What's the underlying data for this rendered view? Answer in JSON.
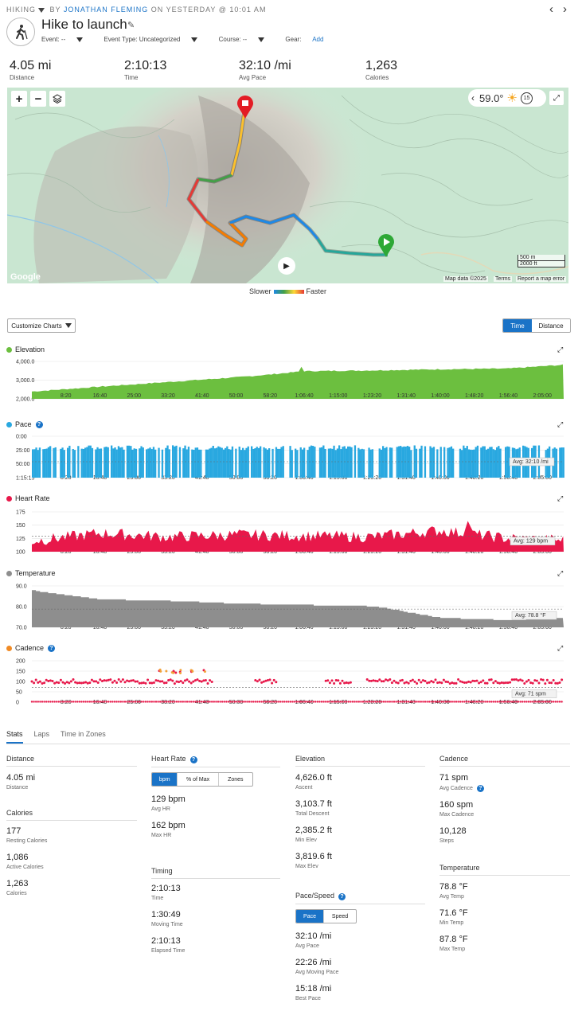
{
  "header": {
    "category": "HIKING",
    "by": "BY",
    "author": "JONATHAN FLEMING",
    "on": "ON YESTERDAY @ 10:01 AM",
    "title": "Hike to launch",
    "event_label": "Event: --",
    "event_type_label": "Event Type: Uncategorized",
    "course_label": "Course: --",
    "gear_label": "Gear:",
    "gear_add": "Add",
    "prev_icon": "chevron-left-icon",
    "next_icon": "chevron-right-icon"
  },
  "summary": [
    {
      "value": "4.05 mi",
      "label": "Distance"
    },
    {
      "value": "2:10:13",
      "label": "Time"
    },
    {
      "value": "32:10 /mi",
      "label": "Avg Pace"
    },
    {
      "value": "1,263",
      "label": "Calories"
    }
  ],
  "map": {
    "temperature": "59.0°",
    "weather_icon": "sun-icon",
    "scale_m": "500 m",
    "scale_ft": "2000 ft",
    "attribution": "Map data ©2025",
    "terms": "Terms",
    "report": "Report a map error",
    "google": "Google",
    "legend_slow": "Slower",
    "legend_fast": "Faster",
    "badge": "15"
  },
  "controls": {
    "customize": "Customize Charts",
    "time": "Time",
    "distance": "Distance"
  },
  "x_ticks": [
    "8:20",
    "16:40",
    "25:00",
    "33:20",
    "41:40",
    "50:00",
    "58:20",
    "1:06:40",
    "1:15:00",
    "1:23:20",
    "1:31:40",
    "1:40:00",
    "1:48:20",
    "1:56:40",
    "2:05:00"
  ],
  "charts": {
    "elevation": {
      "title": "Elevation",
      "color": "#6cbf3f",
      "y_ticks": [
        "4,000.0",
        "3,000.0",
        "2,000.0"
      ]
    },
    "pace": {
      "title": "Pace",
      "color": "#29a8e0",
      "y_ticks": [
        "0:00",
        "25:00",
        "50:00",
        "1:15:15"
      ],
      "avg": "Avg: 32:10 /mi"
    },
    "hr": {
      "title": "Heart Rate",
      "color": "#e8184a",
      "y_ticks": [
        "175",
        "150",
        "125",
        "100"
      ],
      "avg": "Avg: 129 bpm"
    },
    "temp": {
      "title": "Temperature",
      "color": "#8e8e8e",
      "y_ticks": [
        "90.0",
        "80.0",
        "70.0"
      ],
      "avg": "Avg: 78.8 °F"
    },
    "cadence": {
      "title": "Cadence",
      "color": "#e8184a",
      "title_dot": "#f08a24",
      "y_ticks": [
        "200",
        "150",
        "100",
        "50",
        "0"
      ],
      "avg": "Avg: 71 spm"
    }
  },
  "chart_data": [
    {
      "type": "area",
      "title": "Elevation",
      "x_unit": "elapsed time",
      "x": [
        "0:00",
        "16:40",
        "33:20",
        "50:00",
        "58:20",
        "1:06:40",
        "1:23:20",
        "1:40:00",
        "1:56:40",
        "2:10:13"
      ],
      "series": [
        {
          "name": "Elevation",
          "values": [
            2390,
            2650,
            2900,
            3150,
            3300,
            3480,
            3520,
            3580,
            3620,
            3820
          ]
        }
      ],
      "ylim": [
        2000,
        4200
      ]
    },
    {
      "type": "area",
      "title": "Pace",
      "series": [
        {
          "name": "Pace"
        }
      ],
      "avg": "32:10 /mi"
    },
    {
      "type": "area",
      "title": "Heart Rate",
      "x": [
        "0:00",
        "16:40",
        "33:20",
        "50:00",
        "1:06:40",
        "1:23:20",
        "1:40:00",
        "1:56:40",
        "2:10:13"
      ],
      "series": [
        {
          "name": "Heart Rate",
          "values": [
            120,
            135,
            128,
            132,
            130,
            128,
            140,
            125,
            122
          ]
        }
      ],
      "ylim": [
        100,
        175
      ],
      "avg": 129
    },
    {
      "type": "area",
      "title": "Temperature",
      "x": [
        "0:00",
        "8:20",
        "16:40",
        "33:20",
        "50:00",
        "1:06:40",
        "1:23:20",
        "1:40:00",
        "1:56:40",
        "2:10:13"
      ],
      "series": [
        {
          "name": "Temperature",
          "values": [
            87.8,
            85.5,
            83.5,
            82.8,
            81.5,
            80.8,
            80.2,
            74.5,
            73.5,
            74.5
          ]
        }
      ],
      "ylim": [
        70,
        90
      ],
      "avg": 78.8
    },
    {
      "type": "scatter",
      "title": "Cadence",
      "series": [
        {
          "name": "Cadence"
        }
      ],
      "ylim": [
        0,
        200
      ],
      "avg": 71
    }
  ],
  "stats_tabs": [
    "Stats",
    "Laps",
    "Time in Zones"
  ],
  "stats": {
    "distance": {
      "header": "Distance",
      "items": [
        {
          "v": "4.05 mi",
          "l": "Distance"
        }
      ]
    },
    "calories": {
      "header": "Calories",
      "items": [
        {
          "v": "177",
          "l": "Resting Calories"
        },
        {
          "v": "1,086",
          "l": "Active Calories"
        },
        {
          "v": "1,263",
          "l": "Calories"
        }
      ]
    },
    "heart_rate": {
      "header": "Heart Rate",
      "seg": [
        "bpm",
        "% of Max",
        "Zones"
      ],
      "items": [
        {
          "v": "129 bpm",
          "l": "Avg HR"
        },
        {
          "v": "162 bpm",
          "l": "Max HR"
        }
      ]
    },
    "timing": {
      "header": "Timing",
      "items": [
        {
          "v": "2:10:13",
          "l": "Time"
        },
        {
          "v": "1:30:49",
          "l": "Moving Time"
        },
        {
          "v": "2:10:13",
          "l": "Elapsed Time"
        }
      ]
    },
    "elevation": {
      "header": "Elevation",
      "items": [
        {
          "v": "4,626.0 ft",
          "l": "Ascent"
        },
        {
          "v": "3,103.7 ft",
          "l": "Total Descent"
        },
        {
          "v": "2,385.2 ft",
          "l": "Min Elev"
        },
        {
          "v": "3,819.6 ft",
          "l": "Max Elev"
        }
      ]
    },
    "pace": {
      "header": "Pace/Speed",
      "seg": [
        "Pace",
        "Speed"
      ],
      "items": [
        {
          "v": "32:10 /mi",
          "l": "Avg Pace"
        },
        {
          "v": "22:26 /mi",
          "l": "Avg Moving Pace"
        },
        {
          "v": "15:18 /mi",
          "l": "Best Pace"
        }
      ]
    },
    "cadence": {
      "header": "Cadence",
      "items": [
        {
          "v": "71 spm",
          "l": "Avg Cadence"
        },
        {
          "v": "160 spm",
          "l": "Max Cadence"
        },
        {
          "v": "10,128",
          "l": "Steps"
        }
      ]
    },
    "temperature": {
      "header": "Temperature",
      "items": [
        {
          "v": "78.8 °F",
          "l": "Avg Temp"
        },
        {
          "v": "71.6 °F",
          "l": "Min Temp"
        },
        {
          "v": "87.8 °F",
          "l": "Max Temp"
        }
      ]
    }
  }
}
